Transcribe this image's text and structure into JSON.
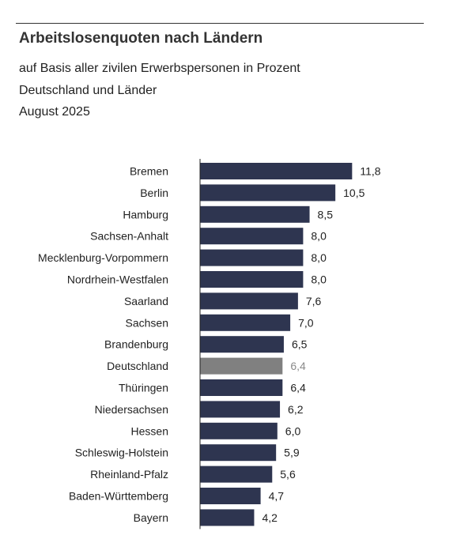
{
  "header": {
    "title": "Arbeitslosenquoten nach Ländern",
    "subtitle_1": "auf Basis aller zivilen Erwerbspersonen in Prozent",
    "subtitle_2": "Deutschland und Länder",
    "subtitle_3": "August 2025"
  },
  "colors": {
    "bar": "#2e3550",
    "highlight_bar": "#808080",
    "highlight_label": "#8a8a8a",
    "text": "#222222",
    "axis": "#222222"
  },
  "chart_data": {
    "type": "bar",
    "orientation": "horizontal",
    "title": "Arbeitslosenquoten nach Ländern",
    "categories": [
      "Bremen",
      "Berlin",
      "Hamburg",
      "Sachsen-Anhalt",
      "Mecklenburg-Vorpommern",
      "Nordrhein-Westfalen",
      "Saarland",
      "Sachsen",
      "Brandenburg",
      "Deutschland",
      "Thüringen",
      "Niedersachsen",
      "Hessen",
      "Schleswig-Holstein",
      "Rheinland-Pfalz",
      "Baden-Württemberg",
      "Bayern"
    ],
    "values": [
      11.8,
      10.5,
      8.5,
      8.0,
      8.0,
      8.0,
      7.6,
      7.0,
      6.5,
      6.4,
      6.4,
      6.2,
      6.0,
      5.9,
      5.6,
      4.7,
      4.2
    ],
    "value_labels": [
      "11,8",
      "10,5",
      "8,5",
      "8,0",
      "8,0",
      "8,0",
      "7,6",
      "7,0",
      "6,5",
      "6,4",
      "6,4",
      "6,2",
      "6,0",
      "5,9",
      "5,6",
      "4,7",
      "4,2"
    ],
    "highlight_category": "Deutschland",
    "xlim": [
      0,
      12
    ],
    "grid": false,
    "legend": false
  }
}
